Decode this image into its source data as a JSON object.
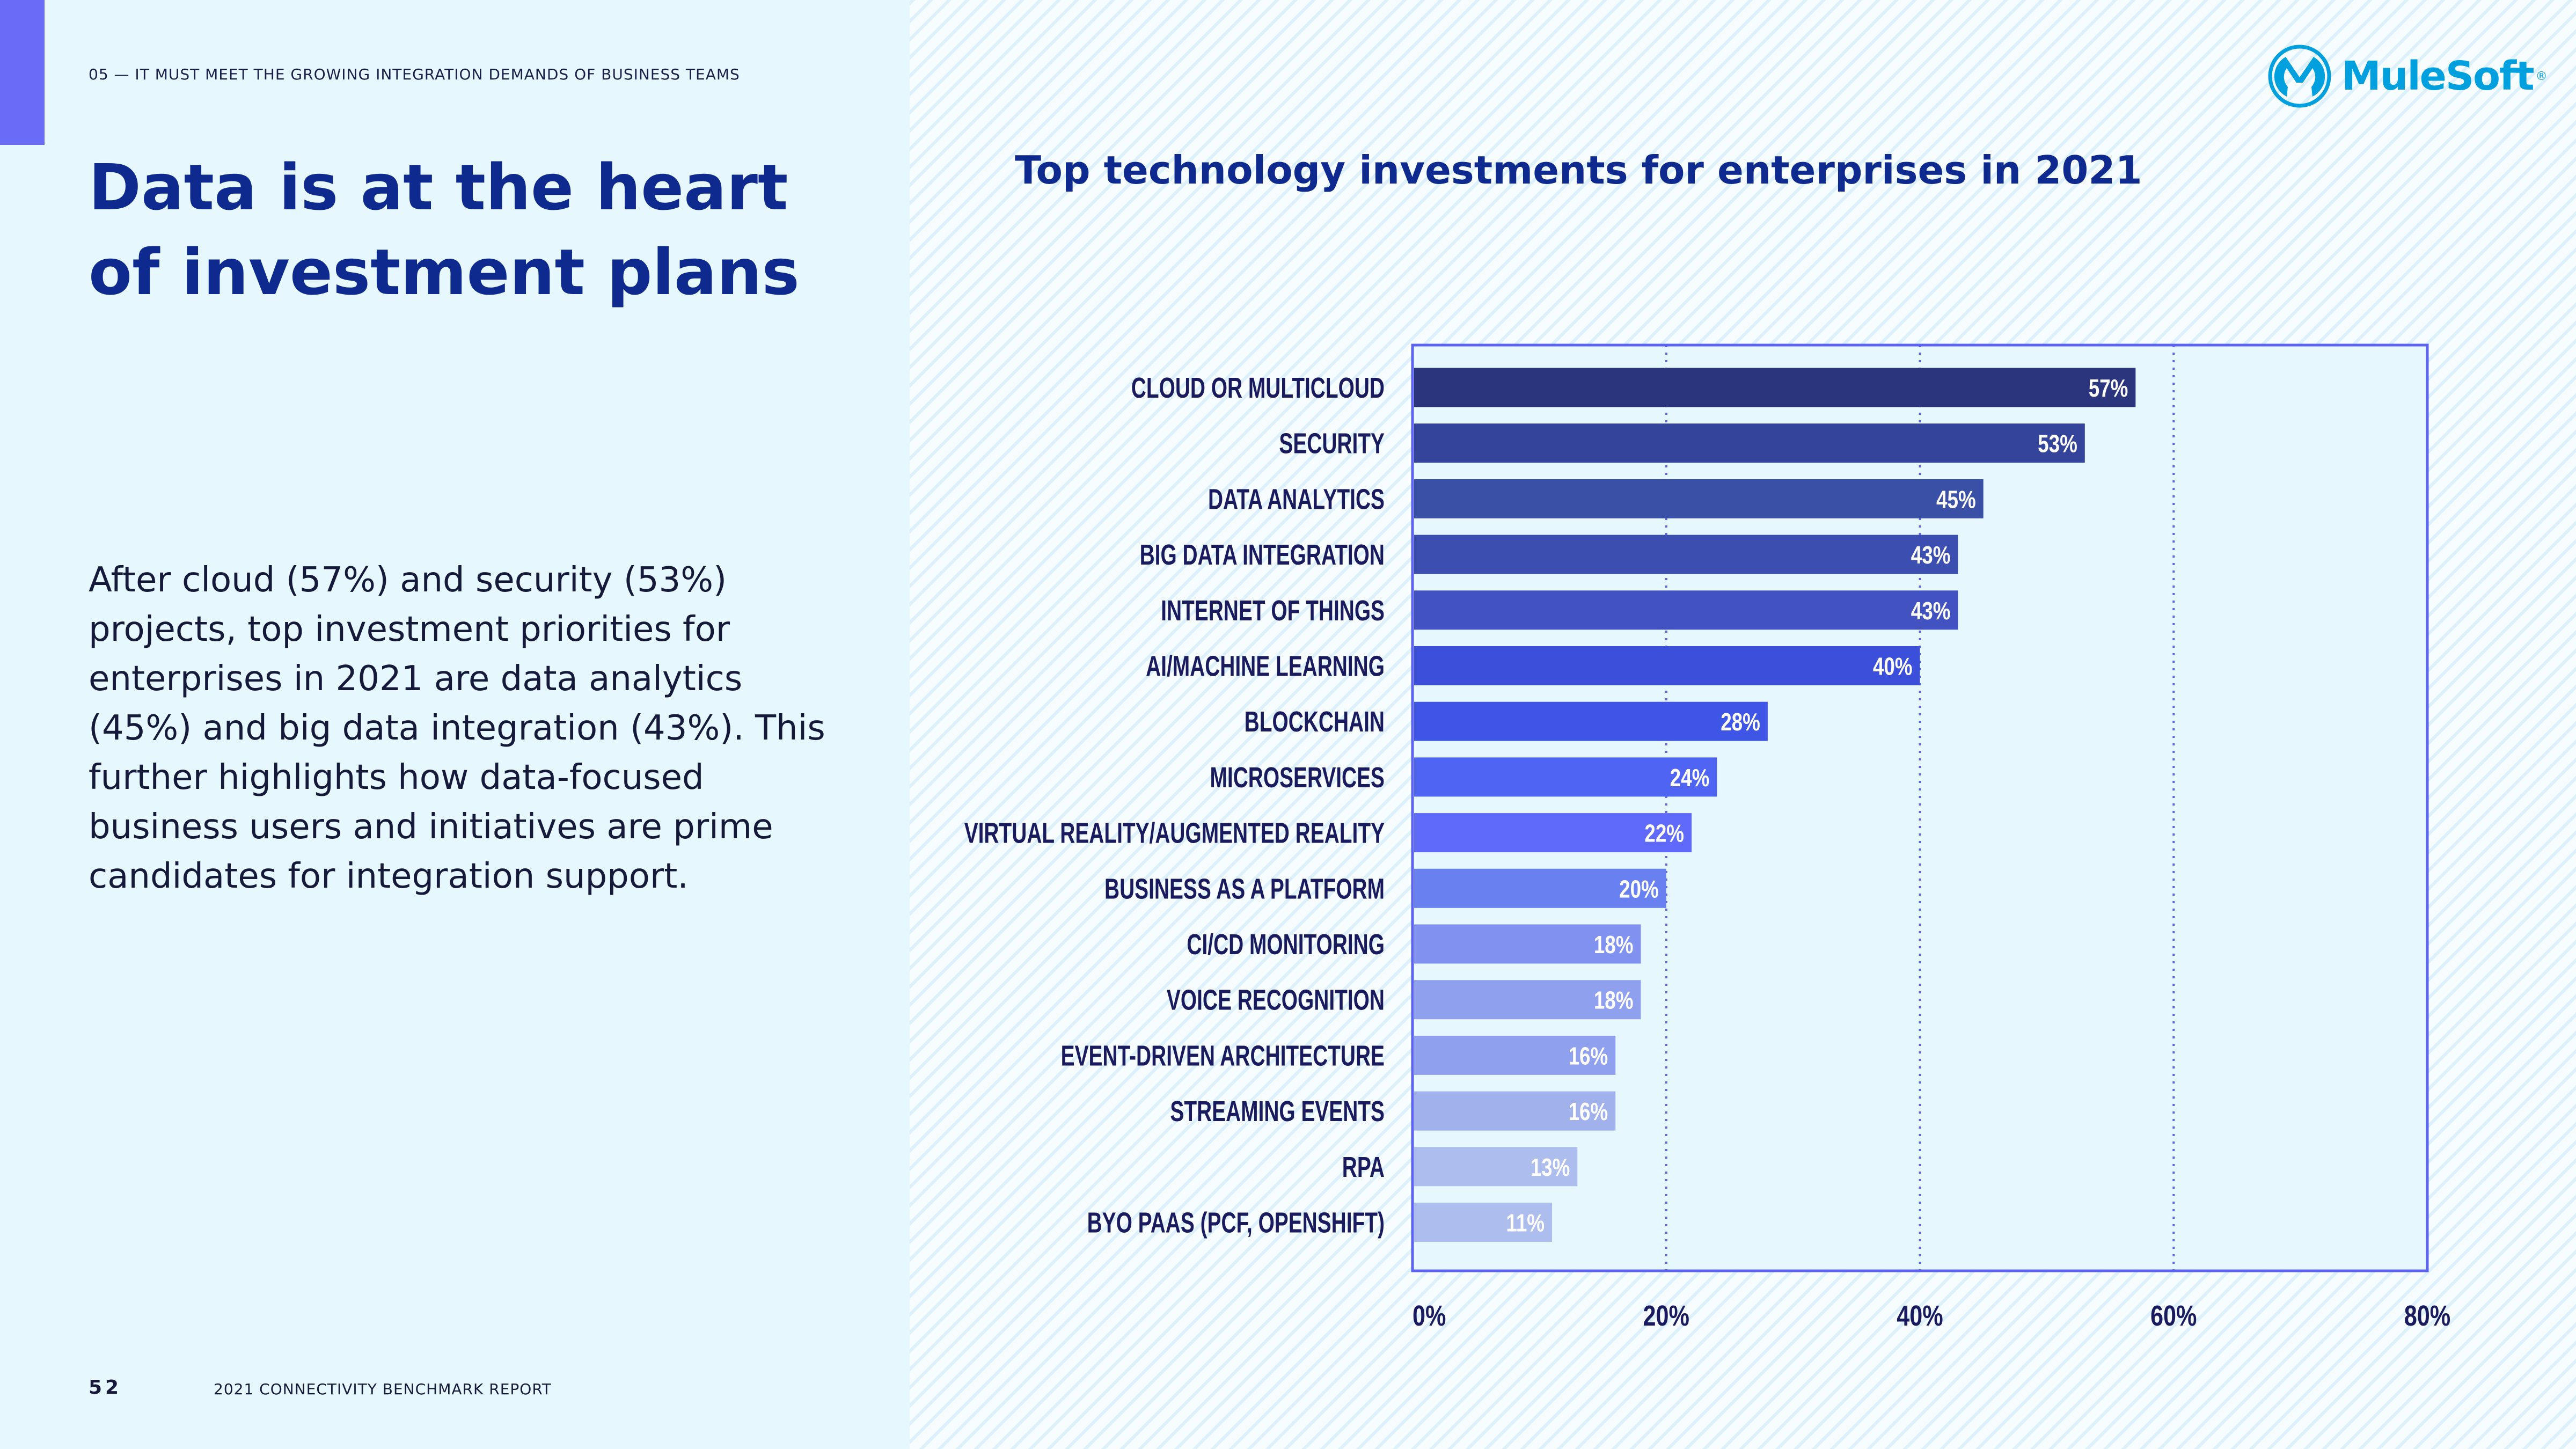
{
  "header": {
    "kicker": "05 — IT MUST MEET THE GROWING INTEGRATION DEMANDS OF BUSINESS TEAMS"
  },
  "page": {
    "title": "Data is at the heart of investment plans",
    "body": "After cloud (57%) and security (53%) projects, top investment priorities for enterprises in 2021 are data analytics (45%) and big data integration (43%). This further highlights how data-focused business users and initiatives are prime candidates for integration support.",
    "page_number": "52",
    "footer": "2021 CONNECTIVITY BENCHMARK REPORT"
  },
  "logo": {
    "text": "MuleSoft",
    "mark": "®",
    "color": "#00a0df"
  },
  "colors": {
    "accent": "#6a6cf7",
    "title": "#0f2a8e",
    "frame": "#5b63f0"
  },
  "chart_data": {
    "type": "bar",
    "orientation": "horizontal",
    "title": "Top technology investments for enterprises in 2021",
    "categories": [
      "CLOUD OR MULTICLOUD",
      "SECURITY",
      "DATA ANALYTICS",
      "BIG DATA INTEGRATION",
      "INTERNET OF THINGS",
      "AI/MACHINE LEARNING",
      "BLOCKCHAIN",
      "MICROSERVICES",
      "VIRTUAL REALITY/AUGMENTED REALITY",
      "BUSINESS AS A PLATFORM",
      "CI/CD MONITORING",
      "VOICE RECOGNITION",
      "EVENT-DRIVEN ARCHITECTURE",
      "STREAMING EVENTS",
      "RPA",
      "BYO PAAS (PCF, OPENSHIFT)"
    ],
    "values": [
      57,
      53,
      45,
      43,
      43,
      40,
      28,
      24,
      22,
      20,
      18,
      18,
      16,
      16,
      13,
      11
    ],
    "data_labels": [
      "57%",
      "53%",
      "45%",
      "43%",
      "43%",
      "40%",
      "28%",
      "24%",
      "22%",
      "20%",
      "18%",
      "18%",
      "16%",
      "16%",
      "13%",
      "11%"
    ],
    "bar_colors": [
      "#2b357d",
      "#33449a",
      "#3a4fa6",
      "#3c4fb0",
      "#4253c1",
      "#3b4fda",
      "#3e55e6",
      "#5064f4",
      "#5f69fa",
      "#6880f0",
      "#8091f0",
      "#8fa0ee",
      "#8fa0ee",
      "#a0b1ec",
      "#adbdee",
      "#adbdee"
    ],
    "xlim": [
      0,
      80
    ],
    "xticks": [
      0,
      20,
      40,
      60,
      80
    ],
    "xtick_labels": [
      "0%",
      "20%",
      "40%",
      "60%",
      "80%"
    ],
    "grid": "vertical dotted"
  }
}
